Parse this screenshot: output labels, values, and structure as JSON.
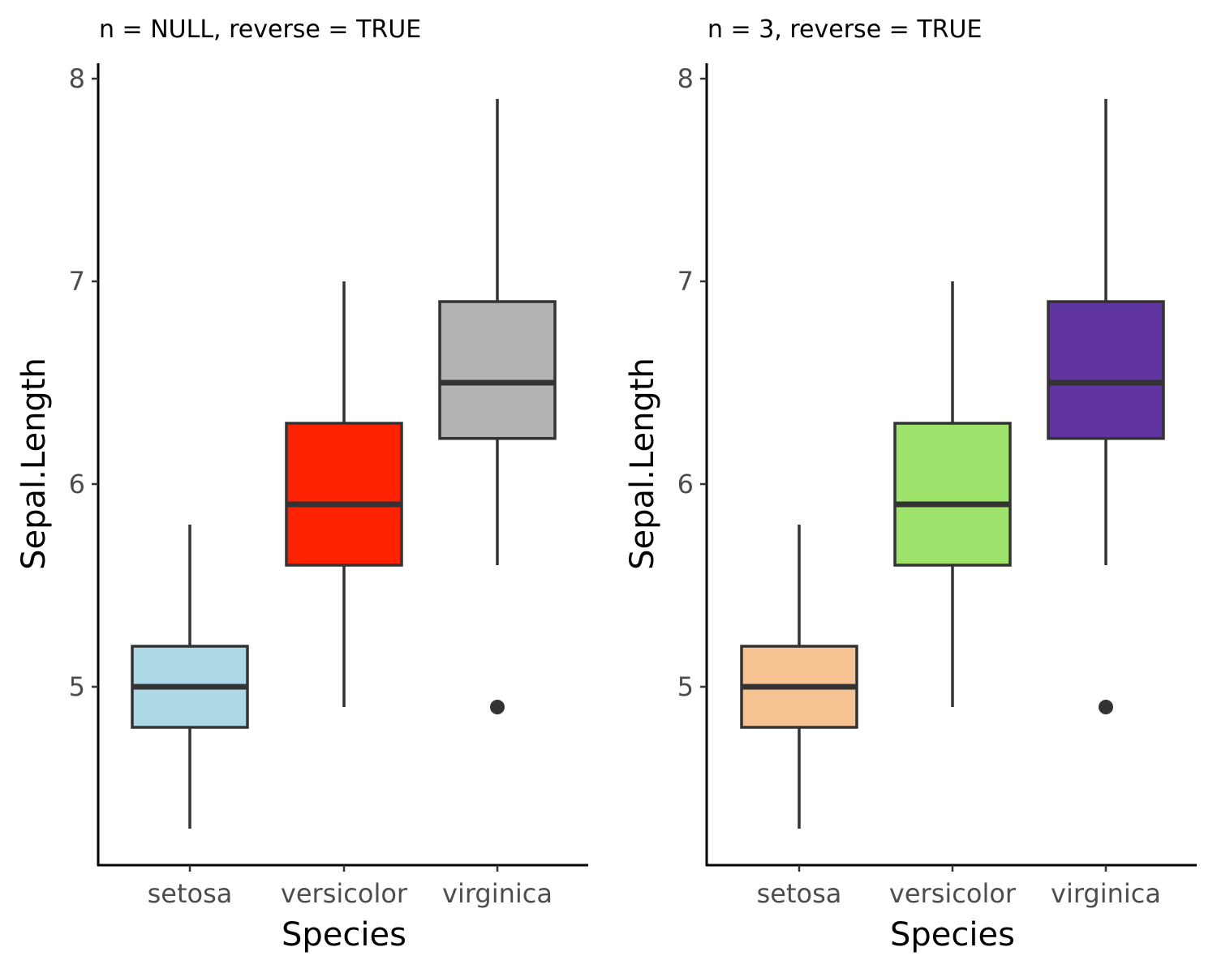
{
  "chart_data": [
    {
      "type": "box",
      "title": "n = NULL, reverse = TRUE",
      "xlabel": "Species",
      "ylabel": "Sepal.Length",
      "ylim": [
        4.2,
        8.1
      ],
      "yticks": [
        5,
        6,
        7,
        8
      ],
      "grid": false,
      "categories": [
        "setosa",
        "versicolor",
        "virginica"
      ],
      "boxes": [
        {
          "category": "setosa",
          "min": 4.3,
          "q1": 4.8,
          "median": 5.0,
          "q3": 5.2,
          "max": 5.8,
          "outliers": [],
          "fill": "#ADD8E6"
        },
        {
          "category": "versicolor",
          "min": 4.9,
          "q1": 5.6,
          "median": 5.9,
          "q3": 6.3,
          "max": 7.0,
          "outliers": [],
          "fill": "#FF2200"
        },
        {
          "category": "virginica",
          "min": 5.6,
          "q1": 6.225,
          "median": 6.5,
          "q3": 6.9,
          "max": 7.9,
          "outliers": [
            4.9
          ],
          "fill": "#B3B3B3"
        }
      ]
    },
    {
      "type": "box",
      "title": "n = 3, reverse = TRUE",
      "xlabel": "Species",
      "ylabel": "Sepal.Length",
      "ylim": [
        4.2,
        8.1
      ],
      "yticks": [
        5,
        6,
        7,
        8
      ],
      "grid": false,
      "categories": [
        "setosa",
        "versicolor",
        "virginica"
      ],
      "boxes": [
        {
          "category": "setosa",
          "min": 4.3,
          "q1": 4.8,
          "median": 5.0,
          "q3": 5.2,
          "max": 5.8,
          "outliers": [],
          "fill": "#F6C291"
        },
        {
          "category": "versicolor",
          "min": 4.9,
          "q1": 5.6,
          "median": 5.9,
          "q3": 6.3,
          "max": 7.0,
          "outliers": [],
          "fill": "#9DE36B"
        },
        {
          "category": "virginica",
          "min": 5.6,
          "q1": 6.225,
          "median": 6.5,
          "q3": 6.9,
          "max": 7.9,
          "outliers": [
            4.9
          ],
          "fill": "#6035A1"
        }
      ]
    }
  ],
  "colors": {
    "outline": "#333333",
    "axis": "#000000",
    "tick_text": "#4d4d4d"
  }
}
